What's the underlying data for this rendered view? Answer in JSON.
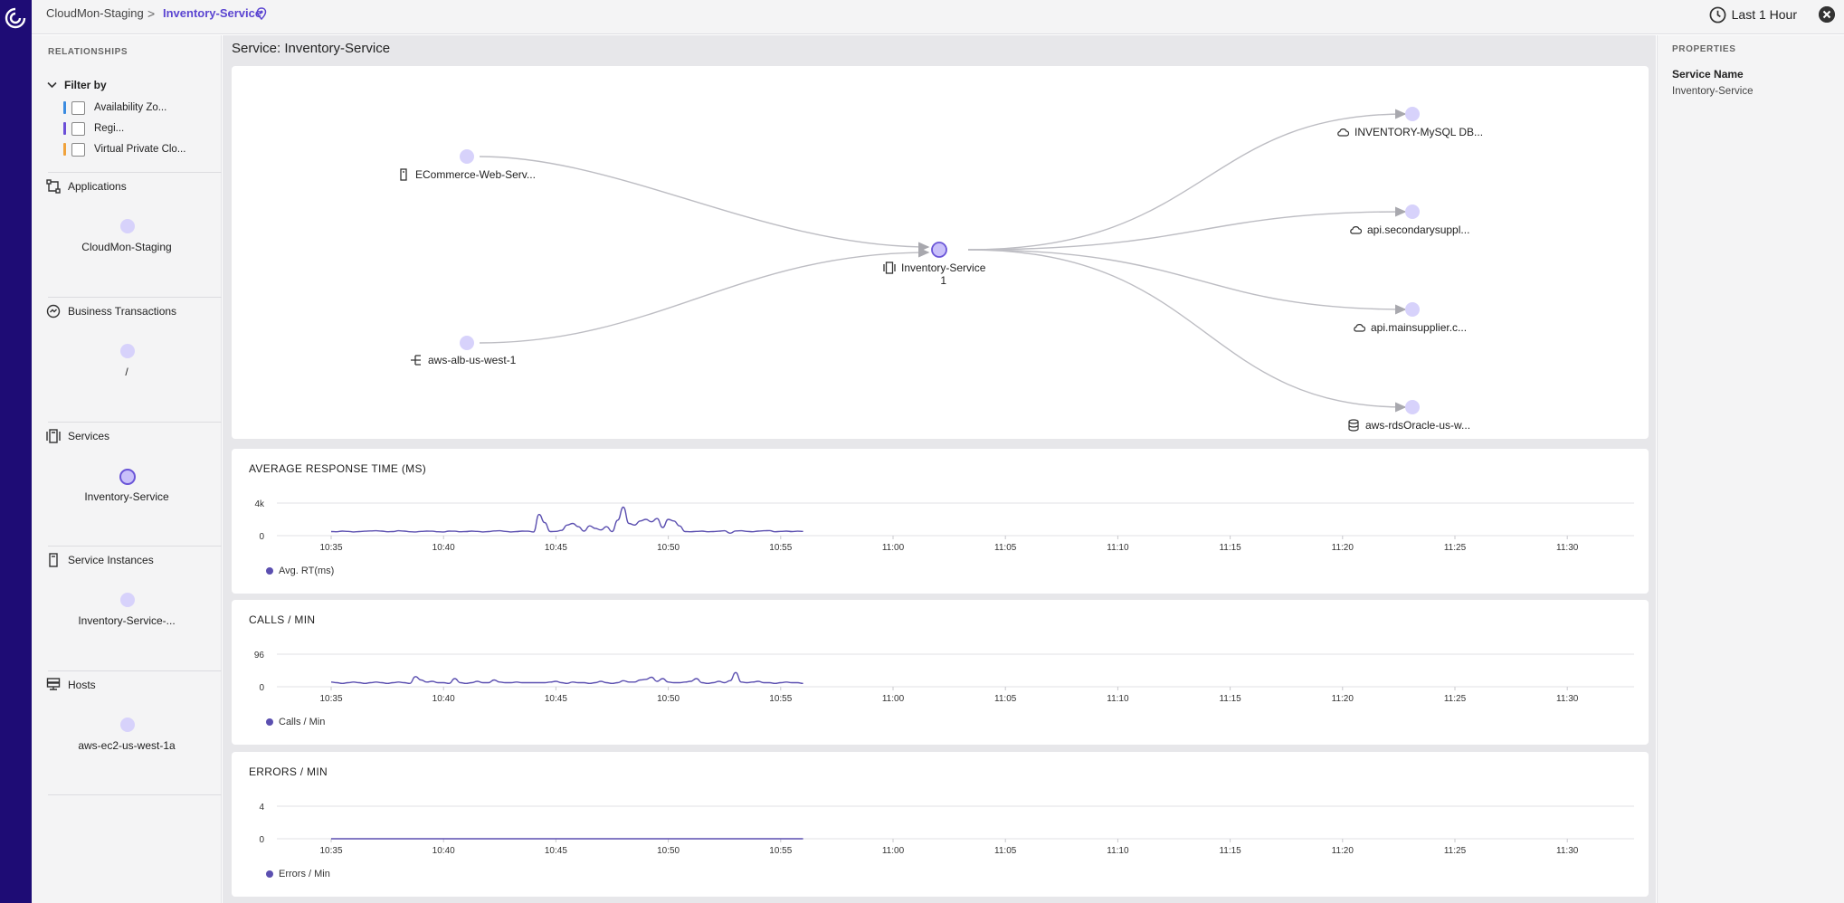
{
  "breadcrumb": {
    "root": "CloudMon-Staging",
    "separator": ">",
    "current": "Inventory-Service"
  },
  "time_range": "Last 1 Hour",
  "relationships": {
    "title": "RELATIONSHIPS",
    "filter_label": "Filter by",
    "filters": [
      {
        "label": "Availability Zo...",
        "color": "#3b8be0"
      },
      {
        "label": "Regi...",
        "color": "#6c4fd8"
      },
      {
        "label": "Virtual Private Clo...",
        "color": "#f0a23c"
      }
    ],
    "sections": [
      {
        "title": "Applications",
        "icon": "applications-icon",
        "item": "CloudMon-Staging"
      },
      {
        "title": "Business Transactions",
        "icon": "business-transactions-icon",
        "item": "/"
      },
      {
        "title": "Services",
        "icon": "services-icon",
        "item": "Inventory-Service"
      },
      {
        "title": "Service Instances",
        "icon": "service-instances-icon",
        "item": "Inventory-Service-..."
      },
      {
        "title": "Hosts",
        "icon": "hosts-icon",
        "item": "aws-ec2-us-west-1a"
      }
    ]
  },
  "main": {
    "title": "Service: Inventory-Service",
    "topology": {
      "sources": [
        {
          "label": "ECommerce-Web-Serv...",
          "icon": "server-icon"
        },
        {
          "label": "aws-alb-us-west-1",
          "icon": "load-balancer-icon"
        }
      ],
      "center": {
        "label": "Inventory-Service",
        "count": "1",
        "icon": "service-icon"
      },
      "targets": [
        {
          "label": "INVENTORY-MySQL DB...",
          "icon": "cloud-icon"
        },
        {
          "label": "api.secondarysuppl...",
          "icon": "cloud-icon"
        },
        {
          "label": "api.mainsupplier.c...",
          "icon": "cloud-icon"
        },
        {
          "label": "aws-rdsOracle-us-w...",
          "icon": "database-icon"
        }
      ]
    }
  },
  "chart_data": [
    {
      "type": "line",
      "title": "AVERAGE RESPONSE TIME (MS)",
      "yticks": [
        "4k",
        "0"
      ],
      "ylim": [
        0,
        4000
      ],
      "xticks": [
        "10:35",
        "10:40",
        "10:45",
        "10:50",
        "10:55",
        "11:00",
        "11:05",
        "11:10",
        "11:15",
        "11:20",
        "11:25",
        "11:30"
      ],
      "series": [
        {
          "name": "Avg. RT(ms)",
          "color": "#5b4fb0",
          "x": [
            10.33,
            10.58,
            10.83,
            11.08,
            11.33,
            11.58,
            11.83,
            12.08,
            12.33,
            12.58,
            12.83,
            13.08,
            13.33,
            13.58,
            13.83,
            14.08,
            14.33,
            14.58,
            14.83,
            15.08,
            15.33,
            15.58,
            15.83,
            16.08,
            16.33,
            16.58,
            16.83,
            17.08,
            17.33,
            17.58,
            17.83,
            18.08,
            18.33,
            18.58,
            18.83,
            19.08,
            19.33,
            19.58,
            19.83,
            20.08,
            20.33,
            20.58,
            20.83,
            21.08,
            21.33,
            21.58,
            21.83,
            22.08,
            22.33,
            22.58,
            22.83,
            23.08,
            23.33,
            23.58,
            23.83,
            24.08,
            24.33,
            24.58,
            24.83,
            25.08,
            25.33,
            25.58,
            25.83,
            26.08,
            26.33,
            26.58,
            26.83,
            27.08,
            27.33,
            27.58,
            27.83,
            28.08,
            28.33,
            28.58,
            28.83,
            29.08,
            29.33,
            29.58,
            29.83,
            30.08,
            30.33,
            30.58,
            30.83,
            31.08,
            31.33
          ],
          "values": [
            500,
            480,
            560,
            520,
            460,
            500,
            540,
            580,
            600,
            560,
            480,
            500,
            600,
            560,
            480,
            460,
            520,
            560,
            540,
            480,
            460,
            560,
            540,
            480,
            500,
            560,
            520,
            460,
            500,
            580,
            600,
            520,
            460,
            500,
            560,
            540,
            460,
            2600,
            1600,
            500,
            520,
            640,
            1300,
            1500,
            1100,
            560,
            1200,
            900,
            700,
            1100,
            500,
            1900,
            3500,
            1500,
            1300,
            1800,
            2000,
            1700,
            2100,
            1000,
            2000,
            1800,
            1200,
            500,
            480,
            520,
            560,
            480,
            500,
            540,
            600,
            300,
            580,
            600,
            520,
            480,
            560,
            600,
            620,
            480,
            520,
            560,
            500,
            540,
            520
          ]
        }
      ]
    },
    {
      "type": "line",
      "title": "CALLS / MIN",
      "yticks": [
        "96",
        "0"
      ],
      "ylim": [
        0,
        96
      ],
      "xticks": [
        "10:35",
        "10:40",
        "10:45",
        "10:50",
        "10:55",
        "11:00",
        "11:05",
        "11:10",
        "11:15",
        "11:20",
        "11:25",
        "11:30"
      ],
      "series": [
        {
          "name": "Calls / Min",
          "color": "#5b4fb0",
          "x": [
            10.33,
            10.58,
            10.83,
            11.08,
            11.33,
            11.58,
            11.83,
            12.08,
            12.33,
            12.58,
            12.83,
            13.08,
            13.33,
            13.58,
            13.83,
            14.08,
            14.33,
            14.58,
            14.83,
            15.08,
            15.33,
            15.58,
            15.83,
            16.08,
            16.33,
            16.58,
            16.83,
            17.08,
            17.33,
            17.58,
            17.83,
            18.08,
            18.33,
            18.58,
            18.83,
            19.08,
            19.33,
            19.58,
            19.83,
            20.08,
            20.33,
            20.58,
            20.83,
            21.08,
            21.33,
            21.58,
            21.83,
            22.08,
            22.33,
            22.58,
            22.83,
            23.08,
            23.33,
            23.58,
            23.83,
            24.08,
            24.33,
            24.58,
            24.83,
            25.08,
            25.33,
            25.58,
            25.83,
            26.08,
            26.33,
            26.58,
            26.83,
            27.08,
            27.33,
            27.58,
            27.83,
            28.08,
            28.33,
            28.58,
            28.83,
            29.08,
            29.33,
            29.58,
            29.83,
            30.08,
            30.33,
            30.58,
            30.83,
            31.08,
            31.33
          ],
          "values": [
            14,
            12,
            10,
            12,
            14,
            12,
            10,
            12,
            14,
            12,
            10,
            12,
            14,
            12,
            10,
            30,
            20,
            14,
            16,
            12,
            12,
            10,
            24,
            12,
            10,
            12,
            16,
            12,
            12,
            20,
            14,
            12,
            12,
            14,
            12,
            12,
            12,
            12,
            12,
            14,
            16,
            12,
            10,
            14,
            12,
            12,
            10,
            12,
            16,
            12,
            10,
            12,
            18,
            14,
            14,
            20,
            22,
            28,
            16,
            24,
            14,
            12,
            12,
            14,
            16,
            24,
            12,
            10,
            12,
            16,
            12,
            18,
            42,
            14,
            12,
            14,
            16,
            12,
            12,
            10,
            12,
            14,
            12,
            12,
            10
          ]
        }
      ]
    },
    {
      "type": "line",
      "title": "ERRORS / MIN",
      "yticks": [
        "4",
        "0"
      ],
      "ylim": [
        0,
        4
      ],
      "xticks": [
        "10:35",
        "10:40",
        "10:45",
        "10:50",
        "10:55",
        "11:00",
        "11:05",
        "11:10",
        "11:15",
        "11:20",
        "11:25",
        "11:30"
      ],
      "series": [
        {
          "name": "Errors / Min",
          "color": "#5b4fb0",
          "x": [
            10.33,
            31.33
          ],
          "values": [
            0,
            0
          ]
        }
      ]
    }
  ],
  "properties": {
    "title": "PROPERTIES",
    "service_name_label": "Service Name",
    "service_name_value": "Inventory-Service"
  }
}
